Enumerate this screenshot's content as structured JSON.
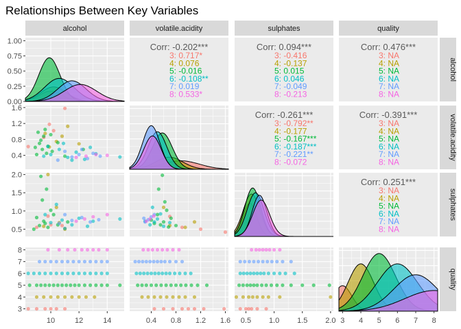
{
  "chart_data": {
    "type": "pairs-matrix",
    "title": "Relationships Between Key Variables",
    "variables": [
      "alcohol",
      "volatile.acidity",
      "sulphates",
      "quality"
    ],
    "groups": [
      "3",
      "4",
      "5",
      "6",
      "7",
      "8"
    ],
    "group_colors": {
      "3": "#F8766D",
      "4": "#B79F00",
      "5": "#00BA38",
      "6": "#00BFC4",
      "7": "#619CFF",
      "8": "#F564E3"
    },
    "axes": {
      "alcohol": {
        "range": [
          8.2,
          15.2
        ],
        "ticks": [
          10,
          12,
          14
        ]
      },
      "volatile.acidity": {
        "range": [
          0.05,
          1.65
        ],
        "ticks": [
          0.4,
          0.8,
          1.2,
          1.6
        ]
      },
      "sulphates": {
        "range": [
          0.3,
          2.05
        ],
        "ticks": [
          0.5,
          1.0,
          1.5,
          2.0
        ],
        "tick_labels": [
          "0.5",
          "1.0",
          "1.5",
          "2.0"
        ]
      },
      "quality": {
        "range": [
          2.8,
          8.2
        ],
        "ticks": [
          3,
          4,
          5,
          6,
          7,
          8
        ]
      }
    },
    "density_y_axis": {
      "range": [
        0,
        1.05
      ],
      "ticks": [
        0.0,
        0.25,
        0.5,
        0.75,
        1.0
      ],
      "tick_labels": [
        "0.00",
        "0.25",
        "0.50",
        "0.75",
        "1.00"
      ]
    },
    "densities": {
      "alcohol": {
        "3": {
          "mean": 10.0,
          "sd": 0.8,
          "peak": 0.17
        },
        "4": {
          "mean": 10.2,
          "sd": 0.9,
          "peak": 0.24
        },
        "5": {
          "mean": 9.9,
          "sd": 0.75,
          "peak": 0.72
        },
        "6": {
          "mean": 10.6,
          "sd": 1.05,
          "peak": 0.38
        },
        "7": {
          "mean": 11.5,
          "sd": 1.0,
          "peak": 0.34
        },
        "8": {
          "mean": 12.1,
          "sd": 1.15,
          "peak": 0.28
        }
      },
      "volatile.acidity": {
        "3": {
          "mean": 0.88,
          "sd": 0.3,
          "peak": 0.14
        },
        "4": {
          "mean": 0.69,
          "sd": 0.22,
          "peak": 0.2
        },
        "5": {
          "mean": 0.58,
          "sd": 0.16,
          "peak": 0.6
        },
        "6": {
          "mean": 0.5,
          "sd": 0.15,
          "peak": 0.62
        },
        "7": {
          "mean": 0.4,
          "sd": 0.14,
          "peak": 0.72
        },
        "8": {
          "mean": 0.42,
          "sd": 0.14,
          "peak": 0.55
        }
      },
      "sulphates": {
        "3": {
          "mean": 0.57,
          "sd": 0.12,
          "peak": 0.55
        },
        "4": {
          "mean": 0.6,
          "sd": 0.15,
          "peak": 0.7
        },
        "5": {
          "mean": 0.62,
          "sd": 0.14,
          "peak": 0.8
        },
        "6": {
          "mean": 0.67,
          "sd": 0.15,
          "peak": 0.72
        },
        "7": {
          "mean": 0.74,
          "sd": 0.13,
          "peak": 0.68
        },
        "8": {
          "mean": 0.77,
          "sd": 0.15,
          "peak": 0.6
        }
      },
      "quality": {
        "3": {
          "mean": 3.0,
          "sd": 0.5,
          "peak": 0.42
        },
        "4": {
          "mean": 4.0,
          "sd": 0.7,
          "peak": 0.78
        },
        "5": {
          "mean": 5.0,
          "sd": 0.9,
          "peak": 0.95
        },
        "6": {
          "mean": 6.0,
          "sd": 1.1,
          "peak": 0.78
        },
        "7": {
          "mean": 7.0,
          "sd": 1.2,
          "peak": 0.6
        },
        "8": {
          "mean": 8.0,
          "sd": 1.6,
          "peak": 0.34
        }
      }
    },
    "correlations": [
      {
        "row": "alcohol",
        "col": "volatile.acidity",
        "overall": "Corr: -0.202***",
        "groups": [
          "3: 0.717*",
          "4: 0.076",
          "5: -0.016",
          "6: -0.108**",
          "7: 0.019",
          "8: 0.533*"
        ]
      },
      {
        "row": "alcohol",
        "col": "sulphates",
        "overall": "Corr: 0.094***",
        "groups": [
          "3: -0.416",
          "4: -0.137",
          "5: 0.015",
          "6: 0.046",
          "7: -0.049",
          "8: -0.213"
        ]
      },
      {
        "row": "alcohol",
        "col": "quality",
        "overall": "Corr: 0.476***",
        "groups": [
          "3: NA",
          "4: NA",
          "5: NA",
          "6: NA",
          "7: NA",
          "8: NA"
        ]
      },
      {
        "row": "volatile.acidity",
        "col": "sulphates",
        "overall": "Corr: -0.261***",
        "groups": [
          "3: -0.792**",
          "4: -0.177",
          "5: -0.167***",
          "6: -0.187***",
          "7: -0.221**",
          "8: -0.072"
        ]
      },
      {
        "row": "volatile.acidity",
        "col": "quality",
        "overall": "Corr: -0.391***",
        "groups": [
          "3: NA",
          "4: NA",
          "5: NA",
          "6: NA",
          "7: NA",
          "8: NA"
        ]
      },
      {
        "row": "sulphates",
        "col": "quality",
        "overall": "Corr: 0.251***",
        "groups": [
          "3: NA",
          "4: NA",
          "5: NA",
          "6: NA",
          "7: NA",
          "8: NA"
        ]
      }
    ],
    "scatter_points": {
      "alcohol_volatile.acidity": [
        {
          "g": "3",
          "x": 8.4,
          "y": 0.62
        },
        {
          "g": "3",
          "x": 9.9,
          "y": 1.18
        },
        {
          "g": "3",
          "x": 10.2,
          "y": 1.02
        },
        {
          "g": "3",
          "x": 11.0,
          "y": 1.58
        },
        {
          "g": "3",
          "x": 9.5,
          "y": 0.85
        },
        {
          "g": "4",
          "x": 9.6,
          "y": 0.95
        },
        {
          "g": "4",
          "x": 10.4,
          "y": 0.75
        },
        {
          "g": "4",
          "x": 11.2,
          "y": 1.13
        },
        {
          "g": "4",
          "x": 9.9,
          "y": 0.61
        },
        {
          "g": "4",
          "x": 10.8,
          "y": 0.88
        },
        {
          "g": "4",
          "x": 12.0,
          "y": 0.69
        },
        {
          "g": "5",
          "x": 9.2,
          "y": 0.7
        },
        {
          "g": "5",
          "x": 9.4,
          "y": 0.55
        },
        {
          "g": "5",
          "x": 9.5,
          "y": 0.88
        },
        {
          "g": "5",
          "x": 9.8,
          "y": 0.63
        },
        {
          "g": "5",
          "x": 10.1,
          "y": 0.5
        },
        {
          "g": "5",
          "x": 9.0,
          "y": 0.42
        },
        {
          "g": "5",
          "x": 9.6,
          "y": 1.05
        },
        {
          "g": "5",
          "x": 10.5,
          "y": 0.72
        },
        {
          "g": "5",
          "x": 8.9,
          "y": 0.6
        },
        {
          "g": "5",
          "x": 11.0,
          "y": 0.38
        },
        {
          "g": "5",
          "x": 9.3,
          "y": 0.78
        },
        {
          "g": "5",
          "x": 10.0,
          "y": 0.92
        },
        {
          "g": "5",
          "x": 9.7,
          "y": 0.45
        },
        {
          "g": "5",
          "x": 12.3,
          "y": 0.55
        },
        {
          "g": "5",
          "x": 9.1,
          "y": 0.98
        },
        {
          "g": "6",
          "x": 10.0,
          "y": 0.42
        },
        {
          "g": "6",
          "x": 10.6,
          "y": 0.55
        },
        {
          "g": "6",
          "x": 11.2,
          "y": 0.35
        },
        {
          "g": "6",
          "x": 9.8,
          "y": 0.62
        },
        {
          "g": "6",
          "x": 11.8,
          "y": 0.48
        },
        {
          "g": "6",
          "x": 12.4,
          "y": 0.3
        },
        {
          "g": "6",
          "x": 10.9,
          "y": 0.7
        },
        {
          "g": "6",
          "x": 13.2,
          "y": 0.44
        },
        {
          "g": "6",
          "x": 9.5,
          "y": 0.38
        },
        {
          "g": "6",
          "x": 14.9,
          "y": 0.36
        },
        {
          "g": "6",
          "x": 12.8,
          "y": 0.6
        },
        {
          "g": "6",
          "x": 11.5,
          "y": 0.28
        },
        {
          "g": "7",
          "x": 11.5,
          "y": 0.36
        },
        {
          "g": "7",
          "x": 12.0,
          "y": 0.42
        },
        {
          "g": "7",
          "x": 12.6,
          "y": 0.32
        },
        {
          "g": "7",
          "x": 11.0,
          "y": 0.5
        },
        {
          "g": "7",
          "x": 13.0,
          "y": 0.45
        },
        {
          "g": "7",
          "x": 10.5,
          "y": 0.28
        },
        {
          "g": "7",
          "x": 12.2,
          "y": 0.55
        },
        {
          "g": "7",
          "x": 13.5,
          "y": 0.38
        },
        {
          "g": "8",
          "x": 12.5,
          "y": 0.38
        },
        {
          "g": "8",
          "x": 13.2,
          "y": 0.42
        },
        {
          "g": "8",
          "x": 11.8,
          "y": 0.35
        },
        {
          "g": "8",
          "x": 14.0,
          "y": 0.4
        }
      ],
      "alcohol_sulphates": [
        {
          "g": "3",
          "x": 9.0,
          "y": 0.55
        },
        {
          "g": "3",
          "x": 10.0,
          "y": 0.62
        },
        {
          "g": "3",
          "x": 11.0,
          "y": 0.52
        },
        {
          "g": "3",
          "x": 9.8,
          "y": 0.86
        },
        {
          "g": "3",
          "x": 10.8,
          "y": 0.6
        },
        {
          "g": "4",
          "x": 9.5,
          "y": 0.58
        },
        {
          "g": "4",
          "x": 10.4,
          "y": 1.1
        },
        {
          "g": "4",
          "x": 11.0,
          "y": 0.5
        },
        {
          "g": "4",
          "x": 9.8,
          "y": 2.0
        },
        {
          "g": "4",
          "x": 10.6,
          "y": 0.68
        },
        {
          "g": "5",
          "x": 9.2,
          "y": 0.6
        },
        {
          "g": "5",
          "x": 9.5,
          "y": 0.72
        },
        {
          "g": "5",
          "x": 9.8,
          "y": 0.55
        },
        {
          "g": "5",
          "x": 10.0,
          "y": 1.02
        },
        {
          "g": "5",
          "x": 9.0,
          "y": 0.82
        },
        {
          "g": "5",
          "x": 9.4,
          "y": 1.3
        },
        {
          "g": "5",
          "x": 10.5,
          "y": 0.62
        },
        {
          "g": "5",
          "x": 9.7,
          "y": 1.6
        },
        {
          "g": "5",
          "x": 9.3,
          "y": 1.95
        },
        {
          "g": "5",
          "x": 11.2,
          "y": 0.7
        },
        {
          "g": "5",
          "x": 8.8,
          "y": 0.5
        },
        {
          "g": "5",
          "x": 10.2,
          "y": 0.9
        },
        {
          "g": "5",
          "x": 9.6,
          "y": 0.66
        },
        {
          "g": "6",
          "x": 10.0,
          "y": 0.68
        },
        {
          "g": "6",
          "x": 10.8,
          "y": 0.75
        },
        {
          "g": "6",
          "x": 11.5,
          "y": 0.62
        },
        {
          "g": "6",
          "x": 9.6,
          "y": 0.9
        },
        {
          "g": "6",
          "x": 12.0,
          "y": 0.8
        },
        {
          "g": "6",
          "x": 12.6,
          "y": 0.58
        },
        {
          "g": "6",
          "x": 10.4,
          "y": 1.18
        },
        {
          "g": "6",
          "x": 13.0,
          "y": 0.72
        },
        {
          "g": "6",
          "x": 11.0,
          "y": 0.52
        },
        {
          "g": "6",
          "x": 14.9,
          "y": 0.78
        },
        {
          "g": "7",
          "x": 11.5,
          "y": 0.74
        },
        {
          "g": "7",
          "x": 12.2,
          "y": 0.82
        },
        {
          "g": "7",
          "x": 12.8,
          "y": 0.7
        },
        {
          "g": "7",
          "x": 11.0,
          "y": 0.9
        },
        {
          "g": "7",
          "x": 13.4,
          "y": 0.76
        },
        {
          "g": "7",
          "x": 10.6,
          "y": 0.66
        },
        {
          "g": "8",
          "x": 12.4,
          "y": 0.78
        },
        {
          "g": "8",
          "x": 13.0,
          "y": 0.84
        },
        {
          "g": "8",
          "x": 11.8,
          "y": 0.72
        },
        {
          "g": "8",
          "x": 14.0,
          "y": 0.9
        }
      ],
      "volatile.acidity_sulphates": [
        {
          "g": "3",
          "x": 0.9,
          "y": 0.55
        },
        {
          "g": "3",
          "x": 1.2,
          "y": 0.5
        },
        {
          "g": "3",
          "x": 1.6,
          "y": 0.42
        },
        {
          "g": "3",
          "x": 0.7,
          "y": 0.85
        },
        {
          "g": "4",
          "x": 0.7,
          "y": 0.6
        },
        {
          "g": "4",
          "x": 0.95,
          "y": 0.55
        },
        {
          "g": "4",
          "x": 1.1,
          "y": 0.7
        },
        {
          "g": "4",
          "x": 0.6,
          "y": 1.1
        },
        {
          "g": "5",
          "x": 0.55,
          "y": 0.62
        },
        {
          "g": "5",
          "x": 0.6,
          "y": 0.7
        },
        {
          "g": "5",
          "x": 0.68,
          "y": 0.56
        },
        {
          "g": "5",
          "x": 0.5,
          "y": 0.9
        },
        {
          "g": "5",
          "x": 0.62,
          "y": 1.25
        },
        {
          "g": "5",
          "x": 0.72,
          "y": 0.8
        },
        {
          "g": "5",
          "x": 0.45,
          "y": 0.66
        },
        {
          "g": "5",
          "x": 0.52,
          "y": 1.6
        },
        {
          "g": "5",
          "x": 0.58,
          "y": 1.98
        },
        {
          "g": "5",
          "x": 0.8,
          "y": 0.6
        },
        {
          "g": "5",
          "x": 0.4,
          "y": 0.75
        },
        {
          "g": "5",
          "x": 0.65,
          "y": 1.02
        },
        {
          "g": "6",
          "x": 0.45,
          "y": 0.7
        },
        {
          "g": "6",
          "x": 0.5,
          "y": 0.78
        },
        {
          "g": "6",
          "x": 0.38,
          "y": 0.62
        },
        {
          "g": "6",
          "x": 0.55,
          "y": 0.92
        },
        {
          "g": "6",
          "x": 0.3,
          "y": 0.72
        },
        {
          "g": "6",
          "x": 0.6,
          "y": 0.58
        },
        {
          "g": "6",
          "x": 0.42,
          "y": 1.1
        },
        {
          "g": "6",
          "x": 0.7,
          "y": 0.68
        },
        {
          "g": "7",
          "x": 0.35,
          "y": 0.76
        },
        {
          "g": "7",
          "x": 0.4,
          "y": 0.84
        },
        {
          "g": "7",
          "x": 0.3,
          "y": 0.7
        },
        {
          "g": "7",
          "x": 0.45,
          "y": 0.9
        },
        {
          "g": "7",
          "x": 0.28,
          "y": 0.8
        },
        {
          "g": "8",
          "x": 0.38,
          "y": 0.78
        },
        {
          "g": "8",
          "x": 0.44,
          "y": 0.86
        },
        {
          "g": "8",
          "x": 0.32,
          "y": 0.72
        }
      ],
      "alcohol_quality": {
        "3": [
          8.4,
          9.0,
          9.6,
          10.0,
          10.4,
          11.0
        ],
        "4": [
          9.0,
          9.5,
          10.0,
          10.5,
          11.0,
          11.5,
          12.0,
          12.5,
          13.1
        ],
        "5": [
          8.5,
          9.0,
          9.3,
          9.6,
          9.9,
          10.2,
          10.5,
          10.8,
          11.1,
          11.4,
          11.7,
          12.0,
          12.4,
          12.8,
          13.2,
          13.6,
          14.0,
          14.9
        ],
        "6": [
          8.4,
          8.8,
          9.2,
          9.6,
          10.0,
          10.4,
          10.8,
          11.2,
          11.6,
          12.0,
          12.4,
          12.8,
          13.2,
          13.6,
          14.0
        ],
        "7": [
          9.2,
          9.6,
          10.0,
          10.4,
          10.8,
          11.2,
          11.6,
          12.0,
          12.4,
          12.8,
          13.2,
          13.6,
          14.0
        ],
        "8": [
          9.8,
          10.6,
          11.2,
          11.7,
          12.2,
          12.6,
          13.0,
          13.4,
          14.0
        ]
      },
      "volatile.acidity_quality": {
        "3": [
          0.45,
          0.6,
          0.75,
          0.9,
          1.0,
          1.1,
          1.25,
          1.58
        ],
        "4": [
          0.25,
          0.35,
          0.45,
          0.55,
          0.65,
          0.75,
          0.85,
          0.95,
          1.1
        ],
        "5": [
          0.18,
          0.25,
          0.32,
          0.4,
          0.48,
          0.56,
          0.64,
          0.72,
          0.8,
          0.88,
          0.96,
          1.05,
          1.15,
          1.3
        ],
        "6": [
          0.16,
          0.22,
          0.28,
          0.34,
          0.4,
          0.46,
          0.52,
          0.58,
          0.64,
          0.7,
          0.78,
          0.86,
          0.95,
          1.04
        ],
        "7": [
          0.14,
          0.2,
          0.26,
          0.32,
          0.38,
          0.44,
          0.5,
          0.56,
          0.62,
          0.7,
          0.8,
          0.9
        ],
        "8": [
          0.27,
          0.35,
          0.42,
          0.5,
          0.58,
          0.66,
          0.75,
          0.85
        ]
      },
      "sulphates_quality": {
        "3": [
          0.4,
          0.5,
          0.55,
          0.6,
          0.7,
          0.86
        ],
        "4": [
          0.33,
          0.45,
          0.55,
          0.62,
          0.7,
          0.8,
          0.9,
          1.1,
          2.0
        ],
        "5": [
          0.38,
          0.45,
          0.52,
          0.58,
          0.64,
          0.7,
          0.78,
          0.86,
          0.95,
          1.05,
          1.15,
          1.3,
          1.5,
          1.7,
          1.98
        ],
        "6": [
          0.4,
          0.46,
          0.52,
          0.58,
          0.64,
          0.7,
          0.76,
          0.82,
          0.9,
          1.0,
          1.1,
          1.2,
          1.36
        ],
        "7": [
          0.4,
          0.48,
          0.56,
          0.64,
          0.72,
          0.8,
          0.88,
          0.96,
          1.05,
          1.15,
          1.3
        ],
        "8": [
          0.6,
          0.68,
          0.74,
          0.8,
          0.86,
          0.92,
          1.0,
          1.1
        ]
      }
    }
  }
}
